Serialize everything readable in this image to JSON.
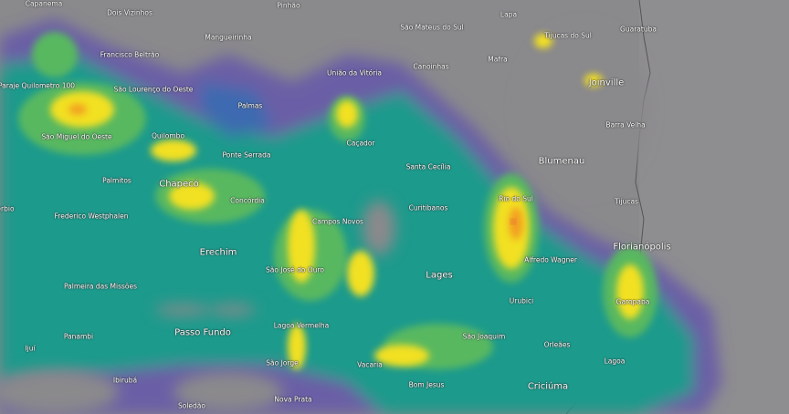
{
  "map": {
    "type": "weather radar precipitation overlay",
    "colors": {
      "land": "#8a898c",
      "ocean": "#8e8d90",
      "light": "#6b5fa6",
      "weak": "#3e6bb0",
      "moderate": "#1e9a8c",
      "medium": "#58b860",
      "strong": "#f2e020",
      "heavy": "#f2a024",
      "intense": "#e0503a"
    },
    "places": [
      "Capanema",
      "Dois Vizinhos",
      "Pinhão",
      "Lapa",
      "São Mateus do Sul",
      "Tijucas do Sul",
      "Guaratuba",
      "Mangueirinha",
      "Francisco Beltrão",
      "União da Vitória",
      "Canoinhas",
      "Mafra",
      "Joinville",
      "Paraje Quilometro 100",
      "São Lourenço do Oeste",
      "Palmas",
      "Barra Velha",
      "São Miguel do Oeste",
      "Quilombo",
      "Caçador",
      "Ponte Serrada",
      "Santa Cecília",
      "Blumenau",
      "Palmitos",
      "Chapecó",
      "Rio do Sul",
      "Tijucas",
      "Concórdia",
      "Curitibanos",
      "Erechim",
      "Campos Novos",
      "erbio",
      "Frederico Westphalen",
      "Florianópolis",
      "Alfredo Wagner",
      "São José do Ouro",
      "Lages",
      "Palmeira das Missões",
      "Urubici",
      "Garopaba",
      "Passo Fundo",
      "Lagoa Vermelha",
      "Panambi",
      "São Joaquim",
      "Orleães",
      "Ijuí",
      "Lagoa",
      "São Jorge",
      "Vacaria",
      "Bom Jesus",
      "Criciúma",
      "Ibirubá",
      "Nova Prata",
      "Soledão"
    ]
  }
}
